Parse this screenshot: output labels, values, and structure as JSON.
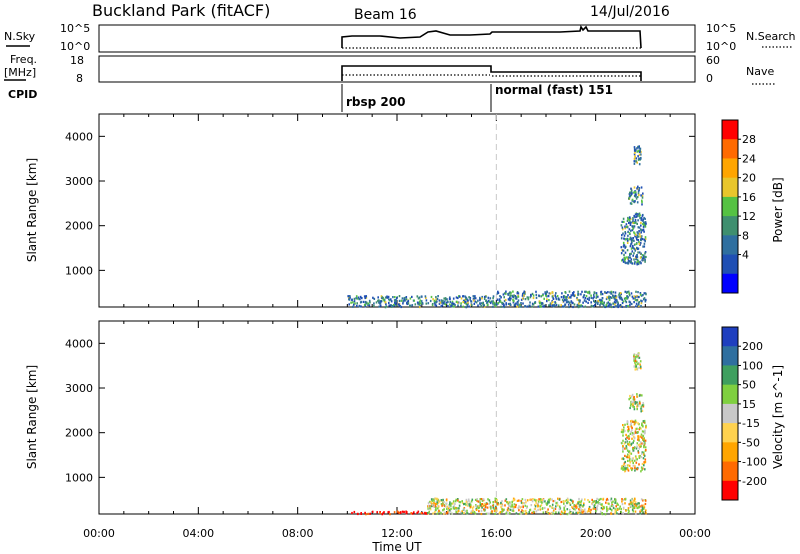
{
  "header": {
    "station": "Buckland Park (fitACF)",
    "beam": "Beam 16",
    "date": "14/Jul/2016"
  },
  "top_panels": {
    "nsky_label": "N.Sky",
    "nsky_ticks": [
      "10^5",
      "10^0"
    ],
    "nsearch_label": "N.Search",
    "nsearch_ticks": [
      "10^5",
      "10^0"
    ],
    "freq_label_1": "Freq.",
    "freq_label_2": "[MHz]",
    "freq_ticks": [
      "18",
      "8"
    ],
    "nave_label": "Nave",
    "nave_ticks": [
      "60",
      "0"
    ],
    "cpid_label": "CPID",
    "cpid_segments": [
      {
        "name": "rbsp 200",
        "start_hour": 10.0,
        "end_hour": 16.0
      },
      {
        "name": "normal (fast) 151",
        "start_hour": 16.0,
        "end_hour": 22.0
      }
    ]
  },
  "chart_data": [
    {
      "type": "heatmap",
      "title": "Power",
      "xlabel": "",
      "ylabel": "Slant Range [km]",
      "x_ticks": [
        "00:00",
        "04:00",
        "08:00",
        "12:00",
        "16:00",
        "20:00",
        "00:00"
      ],
      "xlim": [
        0,
        24
      ],
      "ylim": [
        180,
        4500
      ],
      "y_ticks": [
        1000,
        2000,
        3000,
        4000
      ],
      "colorbar": {
        "label": "Power [dB]",
        "ticks": [
          4,
          8,
          12,
          16,
          20,
          24,
          28
        ],
        "range": [
          0,
          32
        ],
        "colors": [
          "#0000ff",
          "#1f4fb4",
          "#2f6f9f",
          "#3f8f6f",
          "#55c243",
          "#e8c62c",
          "#ffa500",
          "#ff6a00",
          "#ff0000"
        ]
      },
      "regions": [
        {
          "x_start": 10.0,
          "x_end": 16.0,
          "range_start": 200,
          "range_end": 450,
          "level": "low-medium"
        },
        {
          "x_start": 16.0,
          "x_end": 22.0,
          "range_start": 200,
          "range_end": 550,
          "level": "low-medium"
        },
        {
          "x_start": 21.0,
          "x_end": 22.0,
          "range_start": 1150,
          "range_end": 2300,
          "level": "medium"
        },
        {
          "x_start": 21.3,
          "x_end": 21.9,
          "range_start": 2500,
          "range_end": 2900,
          "level": "low"
        },
        {
          "x_start": 21.5,
          "x_end": 21.8,
          "range_start": 3400,
          "range_end": 3800,
          "level": "low"
        }
      ]
    },
    {
      "type": "heatmap",
      "title": "Velocity",
      "xlabel": "Time UT",
      "ylabel": "Slant Range [km]",
      "x_ticks": [
        "00:00",
        "04:00",
        "08:00",
        "12:00",
        "16:00",
        "20:00",
        "00:00"
      ],
      "xlim": [
        0,
        24
      ],
      "ylim": [
        180,
        4500
      ],
      "y_ticks": [
        1000,
        2000,
        3000,
        4000
      ],
      "colorbar": {
        "label": "Velocity [m s^-1]",
        "tick_labels": [
          "200",
          "100",
          "50",
          "15",
          "-15",
          "-50",
          "-100",
          "-200"
        ],
        "colors": [
          "#1f3fbf",
          "#2f6f9f",
          "#3f9f5f",
          "#7fd040",
          "#c8c8c8",
          "#ffd24f",
          "#ffa500",
          "#ff6a00",
          "#ff0000"
        ]
      },
      "regions": [
        {
          "x_start": 10.0,
          "x_end": 13.2,
          "range_start": 200,
          "range_end": 260,
          "velocity": "strongly negative (red)"
        },
        {
          "x_start": 13.2,
          "x_end": 22.0,
          "range_start": 200,
          "range_end": 550,
          "velocity": "mixed, mostly positive"
        },
        {
          "x_start": 21.0,
          "x_end": 22.0,
          "range_start": 1150,
          "range_end": 2300,
          "velocity": "near zero"
        },
        {
          "x_start": 21.3,
          "x_end": 21.9,
          "range_start": 2500,
          "range_end": 2900,
          "velocity": "mixed"
        },
        {
          "x_start": 21.5,
          "x_end": 21.8,
          "range_start": 3400,
          "range_end": 3800,
          "velocity": "mixed"
        }
      ]
    }
  ]
}
